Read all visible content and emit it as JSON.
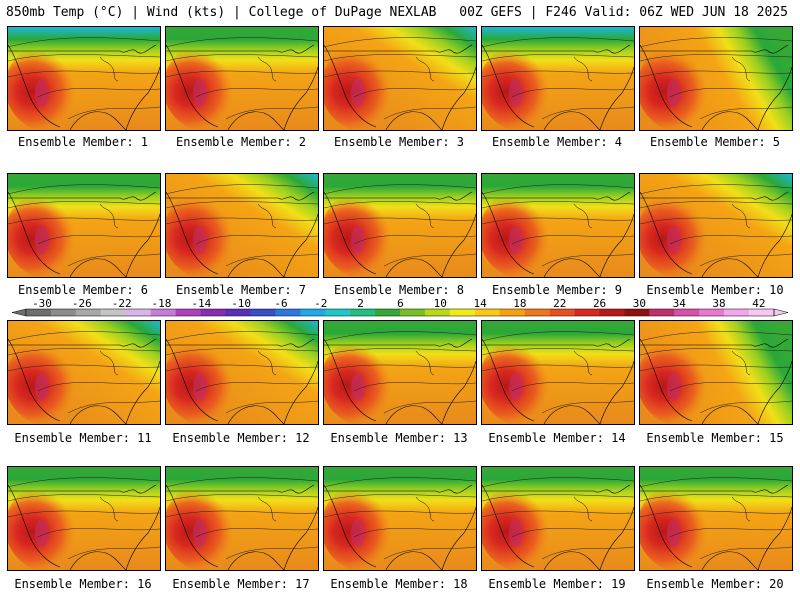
{
  "header": {
    "title_left": "850mb Temp (°C) | Wind (kts) | College of DuPage NEXLAB",
    "title_right": "00Z GEFS | F246 Valid: 06Z WED JUN 18 2025"
  },
  "panels": [
    {
      "label": "Ensemble Member: 1",
      "cool": "north",
      "intensity": 0.8
    },
    {
      "label": "Ensemble Member: 2",
      "cool": "north",
      "intensity": 0.7
    },
    {
      "label": "Ensemble Member: 3",
      "cool": "northeast",
      "intensity": 0.9
    },
    {
      "label": "Ensemble Member: 4",
      "cool": "north",
      "intensity": 0.8
    },
    {
      "label": "Ensemble Member: 5",
      "cool": "east",
      "intensity": 0.7
    },
    {
      "label": "Ensemble Member: 6",
      "cool": "north",
      "intensity": 0.7
    },
    {
      "label": "Ensemble Member: 7",
      "cool": "northeast",
      "intensity": 0.9
    },
    {
      "label": "Ensemble Member: 8",
      "cool": "north",
      "intensity": 0.6
    },
    {
      "label": "Ensemble Member: 9",
      "cool": "north",
      "intensity": 0.7
    },
    {
      "label": "Ensemble Member: 10",
      "cool": "northeast",
      "intensity": 0.8
    },
    {
      "label": "Ensemble Member: 11",
      "cool": "northeast",
      "intensity": 0.8
    },
    {
      "label": "Ensemble Member: 12",
      "cool": "northeast",
      "intensity": 0.8
    },
    {
      "label": "Ensemble Member: 13",
      "cool": "north",
      "intensity": 0.5
    },
    {
      "label": "Ensemble Member: 14",
      "cool": "north",
      "intensity": 0.6
    },
    {
      "label": "Ensemble Member: 15",
      "cool": "east",
      "intensity": 0.6
    },
    {
      "label": "Ensemble Member: 16",
      "cool": "north",
      "intensity": 0.7
    },
    {
      "label": "Ensemble Member: 17",
      "cool": "north",
      "intensity": 0.7
    },
    {
      "label": "Ensemble Member: 18",
      "cool": "north",
      "intensity": 0.6
    },
    {
      "label": "Ensemble Member: 19",
      "cool": "north",
      "intensity": 0.6
    },
    {
      "label": "Ensemble Member: 20",
      "cool": "north",
      "intensity": 0.7
    }
  ],
  "colorbar": {
    "ticks": [
      "-30",
      "-26",
      "-22",
      "-18",
      "-14",
      "-10",
      "-6",
      "-2",
      "2",
      "6",
      "10",
      "14",
      "18",
      "22",
      "26",
      "30",
      "34",
      "38",
      "42"
    ],
    "colors": [
      "#6e6e6e",
      "#8c8c8c",
      "#a8a8a8",
      "#c4c4c4",
      "#d8b4e8",
      "#c77cd6",
      "#b040c0",
      "#8a2bb0",
      "#5a2fb8",
      "#3a4ec8",
      "#2a78e0",
      "#20a8e8",
      "#1cc8c8",
      "#20c080",
      "#36a836",
      "#78c026",
      "#b8d818",
      "#f0ec18",
      "#fcc814",
      "#f8a010",
      "#f07818",
      "#e85020",
      "#d82820",
      "#b81818",
      "#901010",
      "#c0306e",
      "#d850a8",
      "#e878d0",
      "#f0a8e8",
      "#f4c8f0"
    ]
  }
}
